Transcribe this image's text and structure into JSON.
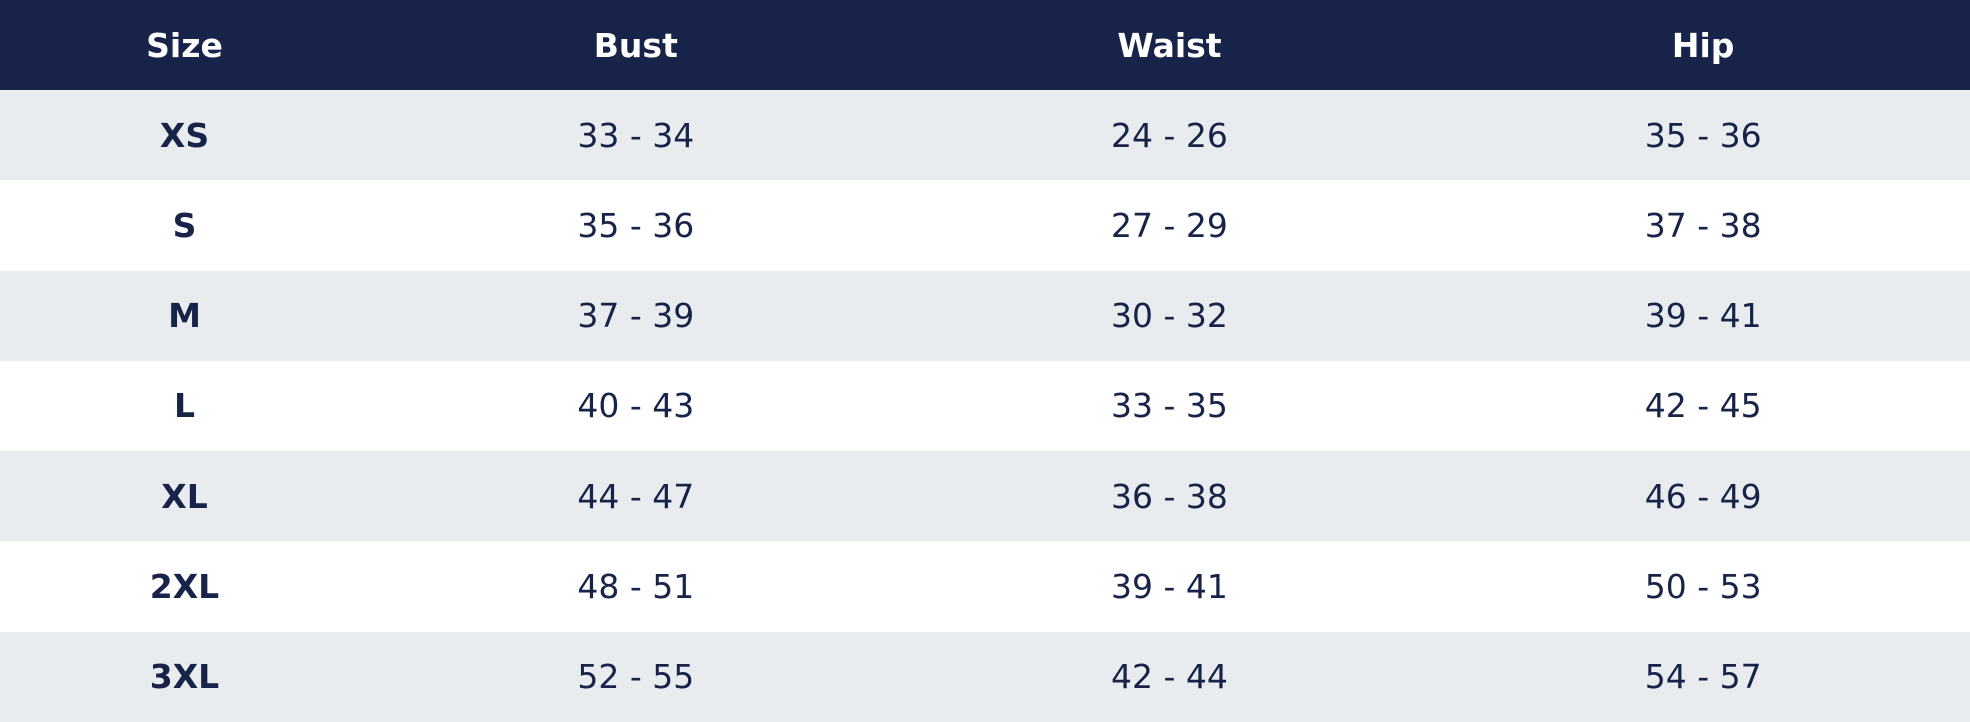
{
  "table": {
    "header": [
      "Size",
      "Bust",
      "Waist",
      "Hip"
    ],
    "rows": [
      [
        "XS",
        "33 - 34",
        "24 - 26",
        "35 - 36"
      ],
      [
        "S",
        "35 - 36",
        "27 - 29",
        "37 - 38"
      ],
      [
        "M",
        "37 - 39",
        "30 - 32",
        "39 - 41"
      ],
      [
        "L",
        "40 - 43",
        "33 - 35",
        "42 - 45"
      ],
      [
        "XL",
        "44 - 47",
        "36 - 38",
        "46 - 49"
      ],
      [
        "2XL",
        "48 - 51",
        "39 - 41",
        "50 - 53"
      ],
      [
        "3XL",
        "52 - 55",
        "42 - 44",
        "54 - 57"
      ]
    ]
  }
}
